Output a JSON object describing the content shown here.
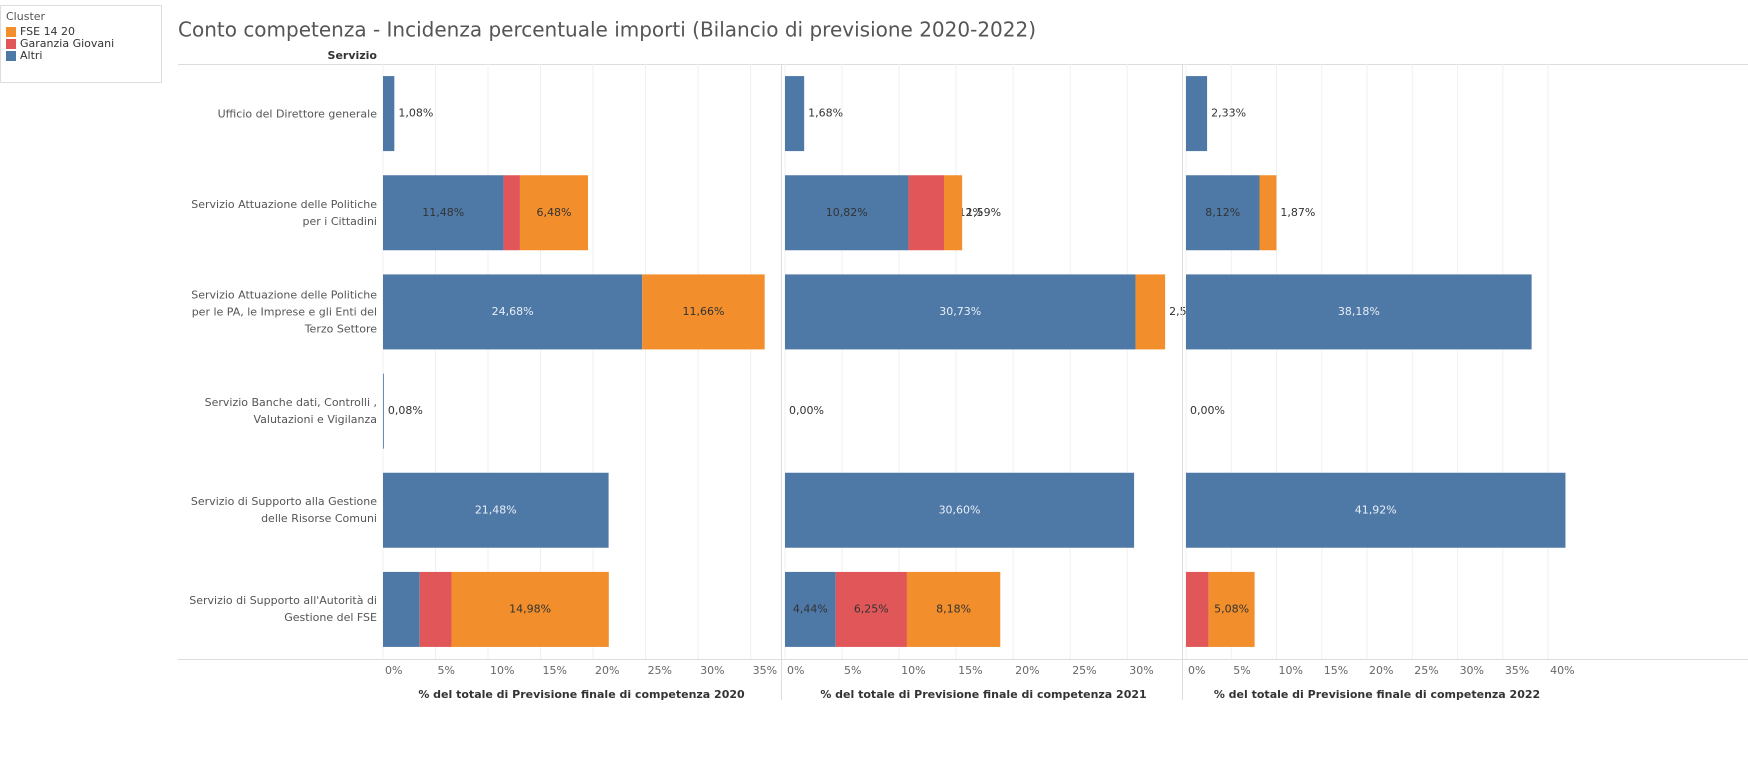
{
  "title": "Conto competenza - Incidenza percentuale importi (Bilancio di previsione 2020-2022)",
  "row_axis_label": "Servizio",
  "categories": [
    "Ufficio del Direttore generale",
    "Servizio Attuazione delle Politiche per i Cittadini",
    "Servizio Attuazione delle Politiche per le PA, le Imprese e gli Enti del Terzo Settore",
    "Servizio Banche dati, Controlli , Valutazioni e Vigilanza",
    "Servizio di Supporto alla Gestione delle Risorse Comuni",
    "Servizio di Supporto all'Autorità di Gestione del FSE"
  ],
  "legend": {
    "title": "Cluster",
    "entries": [
      {
        "name": "FSE 14 20",
        "color": "#f28e2b"
      },
      {
        "name": "Garanzia Giovani",
        "color": "#e15759"
      },
      {
        "name": "Altri",
        "color": "#4e79a7"
      }
    ]
  },
  "chart_data": [
    {
      "type": "bar",
      "orientation": "horizontal",
      "stacked": true,
      "xlabel": "% del totale di Previsione finale di competenza 2020",
      "xlim": [
        0,
        37.8
      ],
      "xticks": [
        {
          "value": 0,
          "label": "0%"
        },
        {
          "value": 5,
          "label": "5%"
        },
        {
          "value": 10,
          "label": "10%"
        },
        {
          "value": 15,
          "label": "15%"
        },
        {
          "value": 20,
          "label": "20%"
        },
        {
          "value": 25,
          "label": "25%"
        },
        {
          "value": 30,
          "label": "30%"
        },
        {
          "value": 35,
          "label": "35%"
        }
      ],
      "grid": true,
      "series": [
        {
          "values": [
            null,
            6.48,
            11.66,
            null,
            null,
            14.98
          ],
          "value_labels": [
            null,
            "6,48%",
            "11,66%",
            null,
            null,
            "14,98%"
          ]
        },
        {
          "values": [
            null,
            1.56,
            null,
            null,
            null,
            3.02
          ],
          "value_labels": [
            null,
            "1,56%",
            null,
            null,
            null,
            "3,02%"
          ]
        },
        {
          "values": [
            1.08,
            11.48,
            24.68,
            0.08,
            21.48,
            3.5
          ],
          "value_labels": [
            "1,08%",
            "11,48%",
            "24,68%",
            "0,08%",
            "21,48%",
            "3,50%"
          ]
        }
      ]
    },
    {
      "type": "bar",
      "orientation": "horizontal",
      "stacked": true,
      "xlabel": "% del totale di Previsione finale di competenza 2021",
      "xlim": [
        0,
        34.8
      ],
      "xticks": [
        {
          "value": 0,
          "label": "0%"
        },
        {
          "value": 5,
          "label": "5%"
        },
        {
          "value": 10,
          "label": "10%"
        },
        {
          "value": 15,
          "label": "15%"
        },
        {
          "value": 20,
          "label": "20%"
        },
        {
          "value": 25,
          "label": "25%"
        },
        {
          "value": 30,
          "label": "30%"
        }
      ],
      "grid": true,
      "series": [
        {
          "values": [
            null,
            1.59,
            2.59,
            null,
            null,
            8.18
          ],
          "value_labels": [
            null,
            "1,59%",
            "2,59%",
            null,
            null,
            "8,18%"
          ]
        },
        {
          "values": [
            null,
            3.12,
            null,
            null,
            null,
            6.25
          ],
          "value_labels": [
            null,
            "3,12%",
            null,
            null,
            null,
            "6,25%"
          ]
        },
        {
          "values": [
            1.68,
            10.82,
            30.73,
            0.0,
            30.6,
            4.44
          ],
          "value_labels": [
            "1,68%",
            "10,82%",
            "30,73%",
            "0,00%",
            "30,60%",
            "4,44%"
          ]
        }
      ]
    },
    {
      "type": "bar",
      "orientation": "horizontal",
      "stacked": true,
      "xlabel": "% del totale di Previsione finale di competenza 2022",
      "xlim": [
        0,
        42.2
      ],
      "xticks": [
        {
          "value": 0,
          "label": "0%"
        },
        {
          "value": 5,
          "label": "5%"
        },
        {
          "value": 10,
          "label": "10%"
        },
        {
          "value": 15,
          "label": "15%"
        },
        {
          "value": 20,
          "label": "20%"
        },
        {
          "value": 25,
          "label": "25%"
        },
        {
          "value": 30,
          "label": "30%"
        },
        {
          "value": 35,
          "label": "35%"
        },
        {
          "value": 40,
          "label": "40%"
        }
      ],
      "grid": true,
      "series": [
        {
          "values": [
            null,
            1.87,
            null,
            null,
            null,
            5.08
          ],
          "value_labels": [
            null,
            "1,87%",
            null,
            null,
            null,
            "5,08%"
          ]
        },
        {
          "values": [
            null,
            null,
            null,
            null,
            null,
            2.5
          ],
          "value_labels": [
            null,
            null,
            null,
            null,
            null,
            "2,50%"
          ]
        },
        {
          "values": [
            2.33,
            8.12,
            38.18,
            0.0,
            41.92,
            null
          ],
          "value_labels": [
            "2,33%",
            "8,12%",
            "38,18%",
            "0,00%",
            "41,92%",
            null
          ]
        }
      ]
    }
  ]
}
